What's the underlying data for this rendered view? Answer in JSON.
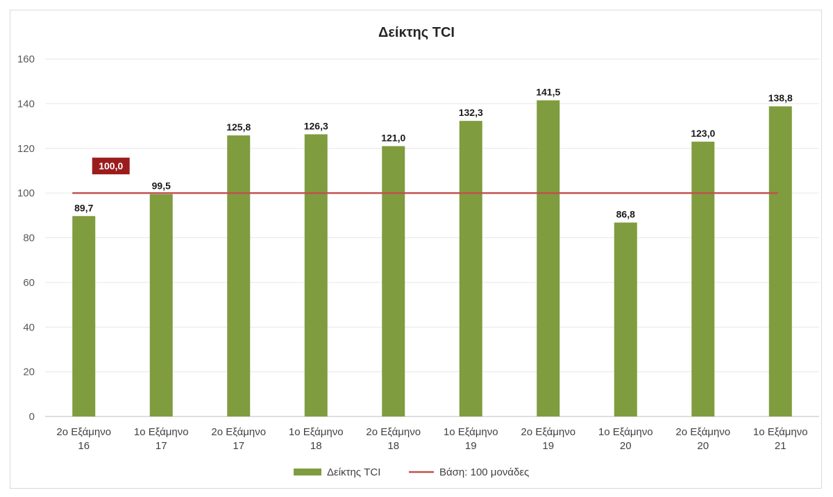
{
  "chart_data": {
    "type": "bar",
    "title": "Δείκτης TCI",
    "categories": [
      [
        "2ο Εξάμηνο",
        "16"
      ],
      [
        "1ο Εξάμηνο",
        "17"
      ],
      [
        "2ο Εξάμηνο",
        "17"
      ],
      [
        "1ο Εξάμηνο",
        "18"
      ],
      [
        "2ο Εξάμηνο",
        "18"
      ],
      [
        "1ο Εξάμηνο",
        "19"
      ],
      [
        "2ο Εξάμηνο",
        "19"
      ],
      [
        "1ο Εξάμηνο",
        "20"
      ],
      [
        "2ο Εξάμηνο",
        "20"
      ],
      [
        "1ο Εξάμηνο",
        "21"
      ]
    ],
    "series": [
      {
        "name": "Δείκτης TCI",
        "type": "bar",
        "color": "#7f9c3f",
        "values": [
          89.7,
          99.5,
          125.8,
          126.3,
          121.0,
          132.3,
          141.5,
          86.8,
          123.0,
          138.8
        ],
        "labels": [
          "89,7",
          "99,5",
          "125,8",
          "126,3",
          "121,0",
          "132,3",
          "141,5",
          "86,8",
          "123,0",
          "138,8"
        ]
      },
      {
        "name": "Βάση: 100 μονάδες",
        "type": "line",
        "color": "#c0504d",
        "value": 100,
        "label": "100,0",
        "label_bg": "#9b1c1c"
      }
    ],
    "ylim": [
      0,
      160
    ],
    "yticks": [
      "0",
      "20",
      "40",
      "60",
      "80",
      "100",
      "120",
      "140",
      "160"
    ],
    "grid": true,
    "legend": "bottom"
  }
}
